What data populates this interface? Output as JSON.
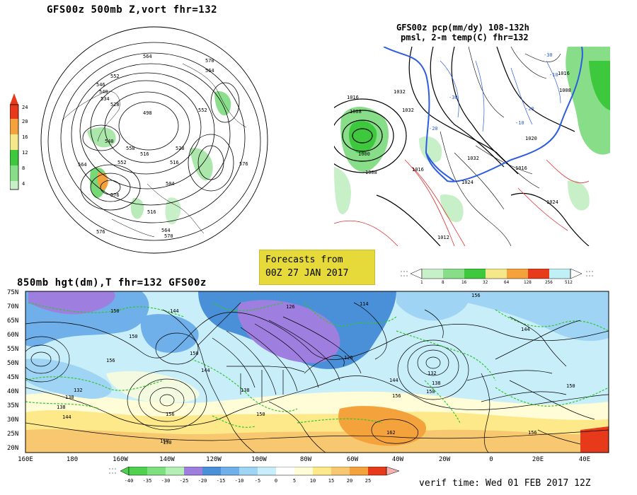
{
  "panels": {
    "polar": {
      "title": "GFS00z  500mb Z,vort   fhr=132",
      "legend_ticks": [
        "24",
        "20",
        "16",
        "12",
        "8",
        "4"
      ],
      "contour_labels": [
        "564",
        "570",
        "564",
        "552",
        "546",
        "540",
        "534",
        "528",
        "552",
        "498",
        "516",
        "528",
        "564",
        "540",
        "552",
        "558",
        "516",
        "504",
        "516",
        "576",
        "564",
        "570",
        "576",
        "576"
      ]
    },
    "precip": {
      "title_line1": "GFS00z pcp(mm/dy) 108-132h",
      "title_line2": "pmsl, 2-m temp(C)   fhr=132",
      "contour_labels": [
        "1016",
        "1008",
        "1000",
        "1008",
        "1032",
        "1032",
        "1024",
        "1032",
        "1020",
        "1008",
        "1016",
        "1016",
        "1016",
        "1012",
        "1024",
        "-10",
        "-30",
        "-20",
        "-30",
        "-20",
        "-10"
      ],
      "legend_ticks": [
        "1",
        "8",
        "16",
        "32",
        "64",
        "128",
        "256",
        "512"
      ]
    },
    "banner": {
      "line1": "Forecasts from",
      "line2": "00Z 27 JAN 2017"
    },
    "hgt850": {
      "title": "850mb hgt(dm),T   fhr=132 GFS00z",
      "lat_labels": [
        "75N",
        "70N",
        "65N",
        "60N",
        "55N",
        "50N",
        "45N",
        "40N",
        "35N",
        "30N",
        "25N",
        "20N"
      ],
      "lon_labels": [
        "160E",
        "180",
        "160W",
        "140W",
        "120W",
        "100W",
        "80W",
        "60W",
        "40W",
        "20W",
        "0",
        "20E",
        "40E"
      ],
      "contour_labels": [
        "150",
        "144",
        "150",
        "156",
        "132",
        "138",
        "144",
        "138",
        "150",
        "150",
        "156",
        "144",
        "126",
        "138",
        "114",
        "126",
        "144",
        "150",
        "156",
        "162",
        "150",
        "156",
        "132",
        "138",
        "144",
        "150",
        "156",
        "150"
      ],
      "temp_legend_ticks": [
        "-40",
        "-35",
        "-30",
        "-25",
        "-20",
        "-15",
        "-10",
        "-5",
        "0",
        "5",
        "10",
        "15",
        "20",
        "25"
      ]
    },
    "verif": {
      "text": "verif time: Wed 01 FEB 2017 12Z"
    }
  },
  "colors": {
    "banner": "#e6d93a",
    "temp_scale": [
      "#4fd04f",
      "#7fe07f",
      "#b4f0b4",
      "#9e7fe0",
      "#4a90d8",
      "#6fb0ea",
      "#a0d4f4",
      "#c8eefa",
      "#fffdd8",
      "#fde98a",
      "#f7c870",
      "#f3a23c",
      "#e63a1a"
    ],
    "precip_scale": [
      "#c8f0c8",
      "#88dd88",
      "#3ec83e",
      "#f5e88a",
      "#f3a23c",
      "#e63a1a",
      "#bff0f5"
    ],
    "vort_scale": [
      "#e83a1a",
      "#f3a23c",
      "#f5e88a",
      "#88dd88",
      "#3ec83e",
      "#c8f0c8"
    ]
  }
}
